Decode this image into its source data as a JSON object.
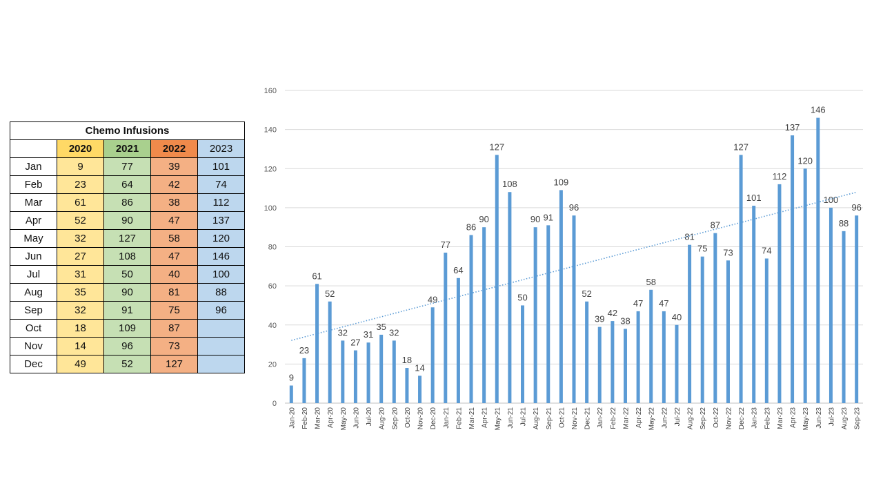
{
  "table": {
    "title": "Chemo Infusions",
    "years": [
      "2020",
      "2021",
      "2022",
      "2023"
    ],
    "rows": [
      {
        "month": "Jan",
        "v": [
          "9",
          "77",
          "39",
          "101"
        ]
      },
      {
        "month": "Feb",
        "v": [
          "23",
          "64",
          "42",
          "74"
        ]
      },
      {
        "month": "Mar",
        "v": [
          "61",
          "86",
          "38",
          "112"
        ]
      },
      {
        "month": "Apr",
        "v": [
          "52",
          "90",
          "47",
          "137"
        ]
      },
      {
        "month": "May",
        "v": [
          "32",
          "127",
          "58",
          "120"
        ]
      },
      {
        "month": "Jun",
        "v": [
          "27",
          "108",
          "47",
          "146"
        ]
      },
      {
        "month": "Jul",
        "v": [
          "31",
          "50",
          "40",
          "100"
        ]
      },
      {
        "month": "Aug",
        "v": [
          "35",
          "90",
          "81",
          "88"
        ]
      },
      {
        "month": "Sep",
        "v": [
          "32",
          "91",
          "75",
          "96"
        ]
      },
      {
        "month": "Oct",
        "v": [
          "18",
          "109",
          "87",
          ""
        ]
      },
      {
        "month": "Nov",
        "v": [
          "14",
          "96",
          "73",
          ""
        ]
      },
      {
        "month": "Dec",
        "v": [
          "49",
          "52",
          "127",
          ""
        ]
      }
    ],
    "colors": {
      "2020_header": "#ffd966",
      "2021_header": "#a9d08e",
      "2022_header": "#f08a4b",
      "2023_header": "#bdd7ee",
      "2020_cell": "#ffe699",
      "2021_cell": "#c6e0b4",
      "2022_cell": "#f4b084",
      "2023_cell": "#bdd7ee"
    }
  },
  "chart_data": {
    "type": "bar",
    "categories": [
      "Jan-20",
      "Feb-20",
      "Mar-20",
      "Apr-20",
      "May-20",
      "Jun-20",
      "Jul-20",
      "Aug-20",
      "Sep-20",
      "Oct-20",
      "Nov-20",
      "Dec-20",
      "Jan-21",
      "Feb-21",
      "Mar-21",
      "Apr-21",
      "May-21",
      "Jun-21",
      "Jul-21",
      "Aug-21",
      "Sep-21",
      "Oct-21",
      "Nov-21",
      "Dec-21",
      "Jan-22",
      "Feb-22",
      "Mar-22",
      "Apr-22",
      "May-22",
      "Jun-22",
      "Jul-22",
      "Aug-22",
      "Sep-22",
      "Oct-22",
      "Nov-22",
      "Dec-22",
      "Jan-23",
      "Feb-23",
      "Mar-23",
      "Apr-23",
      "May-23",
      "Jun-23",
      "Jul-23",
      "Aug-23",
      "Sep-23"
    ],
    "values": [
      9,
      23,
      61,
      52,
      32,
      27,
      31,
      35,
      32,
      18,
      14,
      49,
      77,
      64,
      86,
      90,
      127,
      108,
      50,
      90,
      91,
      109,
      96,
      52,
      39,
      42,
      38,
      47,
      58,
      47,
      40,
      81,
      75,
      87,
      73,
      127,
      101,
      74,
      112,
      137,
      120,
      146,
      100,
      88,
      96
    ],
    "ylim": [
      0,
      160
    ],
    "yticks": [
      0,
      20,
      40,
      60,
      80,
      100,
      120,
      140,
      160
    ],
    "trendline": {
      "type": "linear",
      "style": "dotted",
      "color": "#5b9bd5"
    },
    "bar_color": "#5b9bd5",
    "grid": true,
    "title": "",
    "xlabel": "",
    "ylabel": ""
  }
}
